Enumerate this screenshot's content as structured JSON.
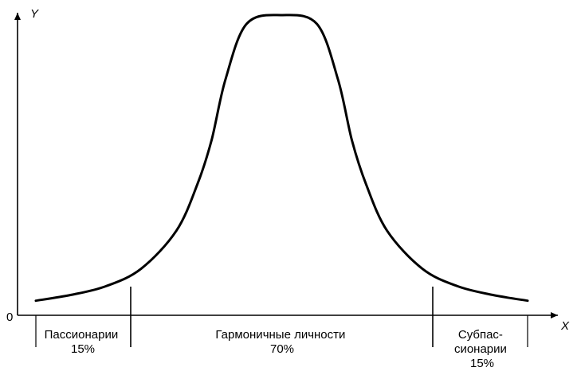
{
  "chart_data": {
    "type": "line",
    "title": "",
    "xlabel": "X",
    "ylabel": "Y",
    "origin_label": "0",
    "grid": false,
    "legend": "none",
    "colors": {
      "curve": "#000000",
      "background": "#ffffff"
    },
    "series": [
      {
        "x": [
          -3.5,
          -3.0,
          -2.5,
          -2.0,
          -1.5,
          -1.2,
          -1.0,
          -0.8,
          -0.5,
          0.0,
          0.5,
          0.8,
          1.0,
          1.2,
          1.5,
          2.0,
          2.5,
          3.0,
          3.5
        ],
        "y": [
          0.02,
          0.04,
          0.07,
          0.13,
          0.26,
          0.42,
          0.57,
          0.78,
          0.97,
          1.0,
          0.97,
          0.78,
          0.57,
          0.42,
          0.26,
          0.13,
          0.07,
          0.04,
          0.02
        ]
      }
    ],
    "regions": [
      {
        "lines": [
          "Пассионарии",
          "15%"
        ]
      },
      {
        "lines": [
          "Гармоничные личности",
          "70%"
        ]
      },
      {
        "lines": [
          "Субпас-",
          "сионарии",
          "15%"
        ]
      }
    ]
  }
}
